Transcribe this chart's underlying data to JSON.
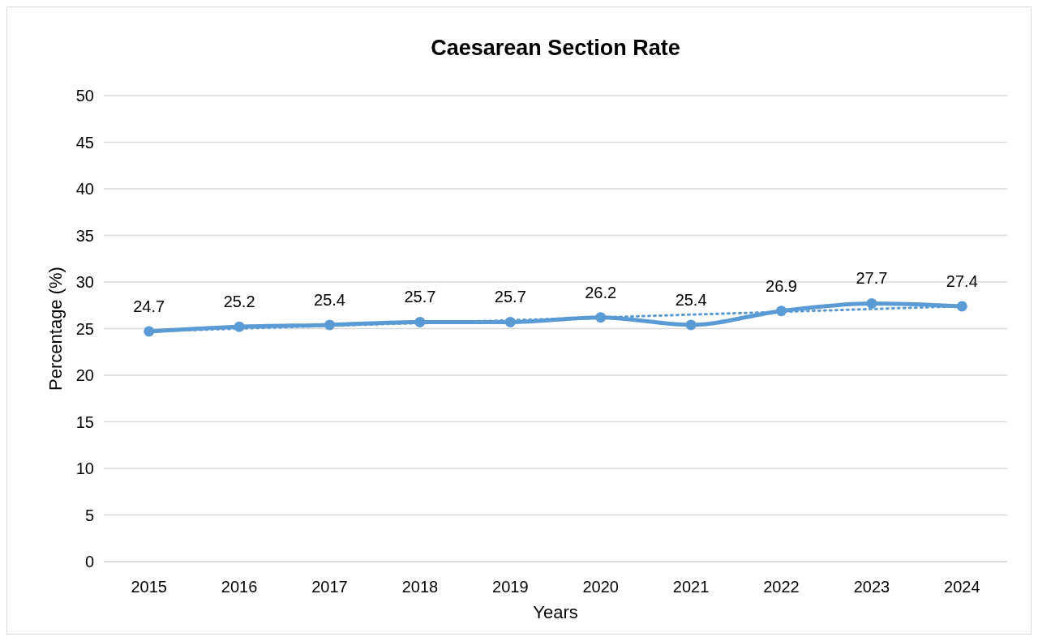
{
  "chart_data": {
    "type": "line",
    "title": "Caesarean Section Rate",
    "xlabel": "Years",
    "ylabel": "Percentage (%)",
    "categories": [
      "2015",
      "2016",
      "2017",
      "2018",
      "2019",
      "2020",
      "2021",
      "2022",
      "2023",
      "2024"
    ],
    "series": [
      {
        "color": "#5b9bd5",
        "values": [
          24.7,
          25.2,
          25.4,
          25.7,
          25.7,
          26.2,
          25.4,
          26.9,
          27.7,
          27.4
        ],
        "data_labels": true,
        "marker": "circle",
        "line_style": "solid"
      },
      {
        "type": "line",
        "color": "#5b9bd5",
        "values": [
          24.7,
          25.0,
          25.3,
          25.6,
          25.9,
          26.2,
          26.5,
          26.8,
          27.1,
          27.4
        ],
        "line_style": "dotted"
      }
    ],
    "ylim": [
      0,
      50
    ],
    "yticks": [
      0,
      5,
      10,
      15,
      20,
      25,
      30,
      35,
      40,
      45,
      50
    ],
    "grid": "y"
  }
}
